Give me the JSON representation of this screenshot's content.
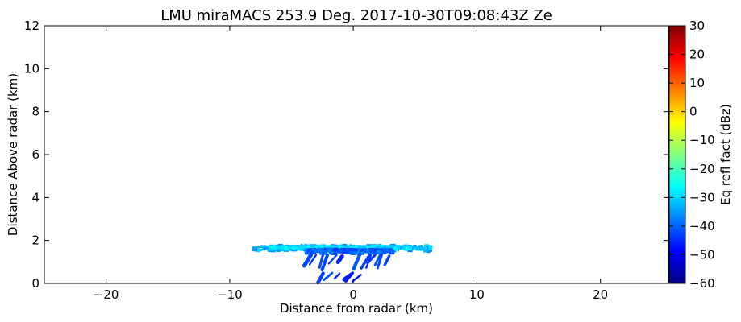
{
  "chart_data": {
    "type": "heatmap",
    "title": "LMU miraMACS 253.9 Deg. 2017-10-30T09:08:43Z  Ze",
    "xlabel": "Distance from radar (km)",
    "ylabel": "Distance Above radar  (km)",
    "xlim": [
      -25,
      25.5
    ],
    "ylim": [
      0,
      12
    ],
    "x_ticks": [
      -20,
      -10,
      0,
      10,
      20
    ],
    "x_tick_labels": [
      "−20",
      "−10",
      "0",
      "10",
      "20"
    ],
    "y_ticks": [
      0,
      2,
      4,
      6,
      8,
      10,
      12
    ],
    "y_tick_labels": [
      "0",
      "2",
      "4",
      "6",
      "8",
      "10",
      "12"
    ],
    "colorbar": {
      "label": "Eq refl fact (dBz)",
      "range": [
        -60,
        30
      ],
      "ticks": [
        30,
        20,
        10,
        0,
        -10,
        -20,
        -30,
        -40,
        -50,
        -60
      ],
      "tick_labels": [
        "30",
        "20",
        "10",
        "0",
        "−10",
        "−20",
        "−30",
        "−40",
        "−50",
        "−60"
      ],
      "colormap": "jet",
      "colors": [
        "#00007f",
        "#0000ff",
        "#007fff",
        "#00ffff",
        "#7fff7f",
        "#ffff00",
        "#ff7f00",
        "#ff0000",
        "#7f0000"
      ]
    },
    "echo_regions": [
      {
        "shape": "layer",
        "x_range": [
          -8.2,
          6.2
        ],
        "y_range": [
          1.45,
          1.85
        ],
        "dbz": -33
      },
      {
        "shape": "layer",
        "x_range": [
          -7,
          4.5
        ],
        "y_range": [
          1.55,
          1.78
        ],
        "dbz": -30
      },
      {
        "shape": "layer",
        "x_range": [
          -4,
          3
        ],
        "y_range": [
          1.35,
          1.65
        ],
        "dbz": -40
      },
      {
        "shape": "fallstreaks",
        "x_range": [
          -4,
          4
        ],
        "y_range": [
          0.6,
          1.4
        ],
        "dbz": -43
      },
      {
        "shape": "fallstreaks",
        "x_range": [
          -2.5,
          1.5
        ],
        "y_range": [
          0.0,
          0.5
        ],
        "dbz": -45
      }
    ],
    "grid": false
  }
}
